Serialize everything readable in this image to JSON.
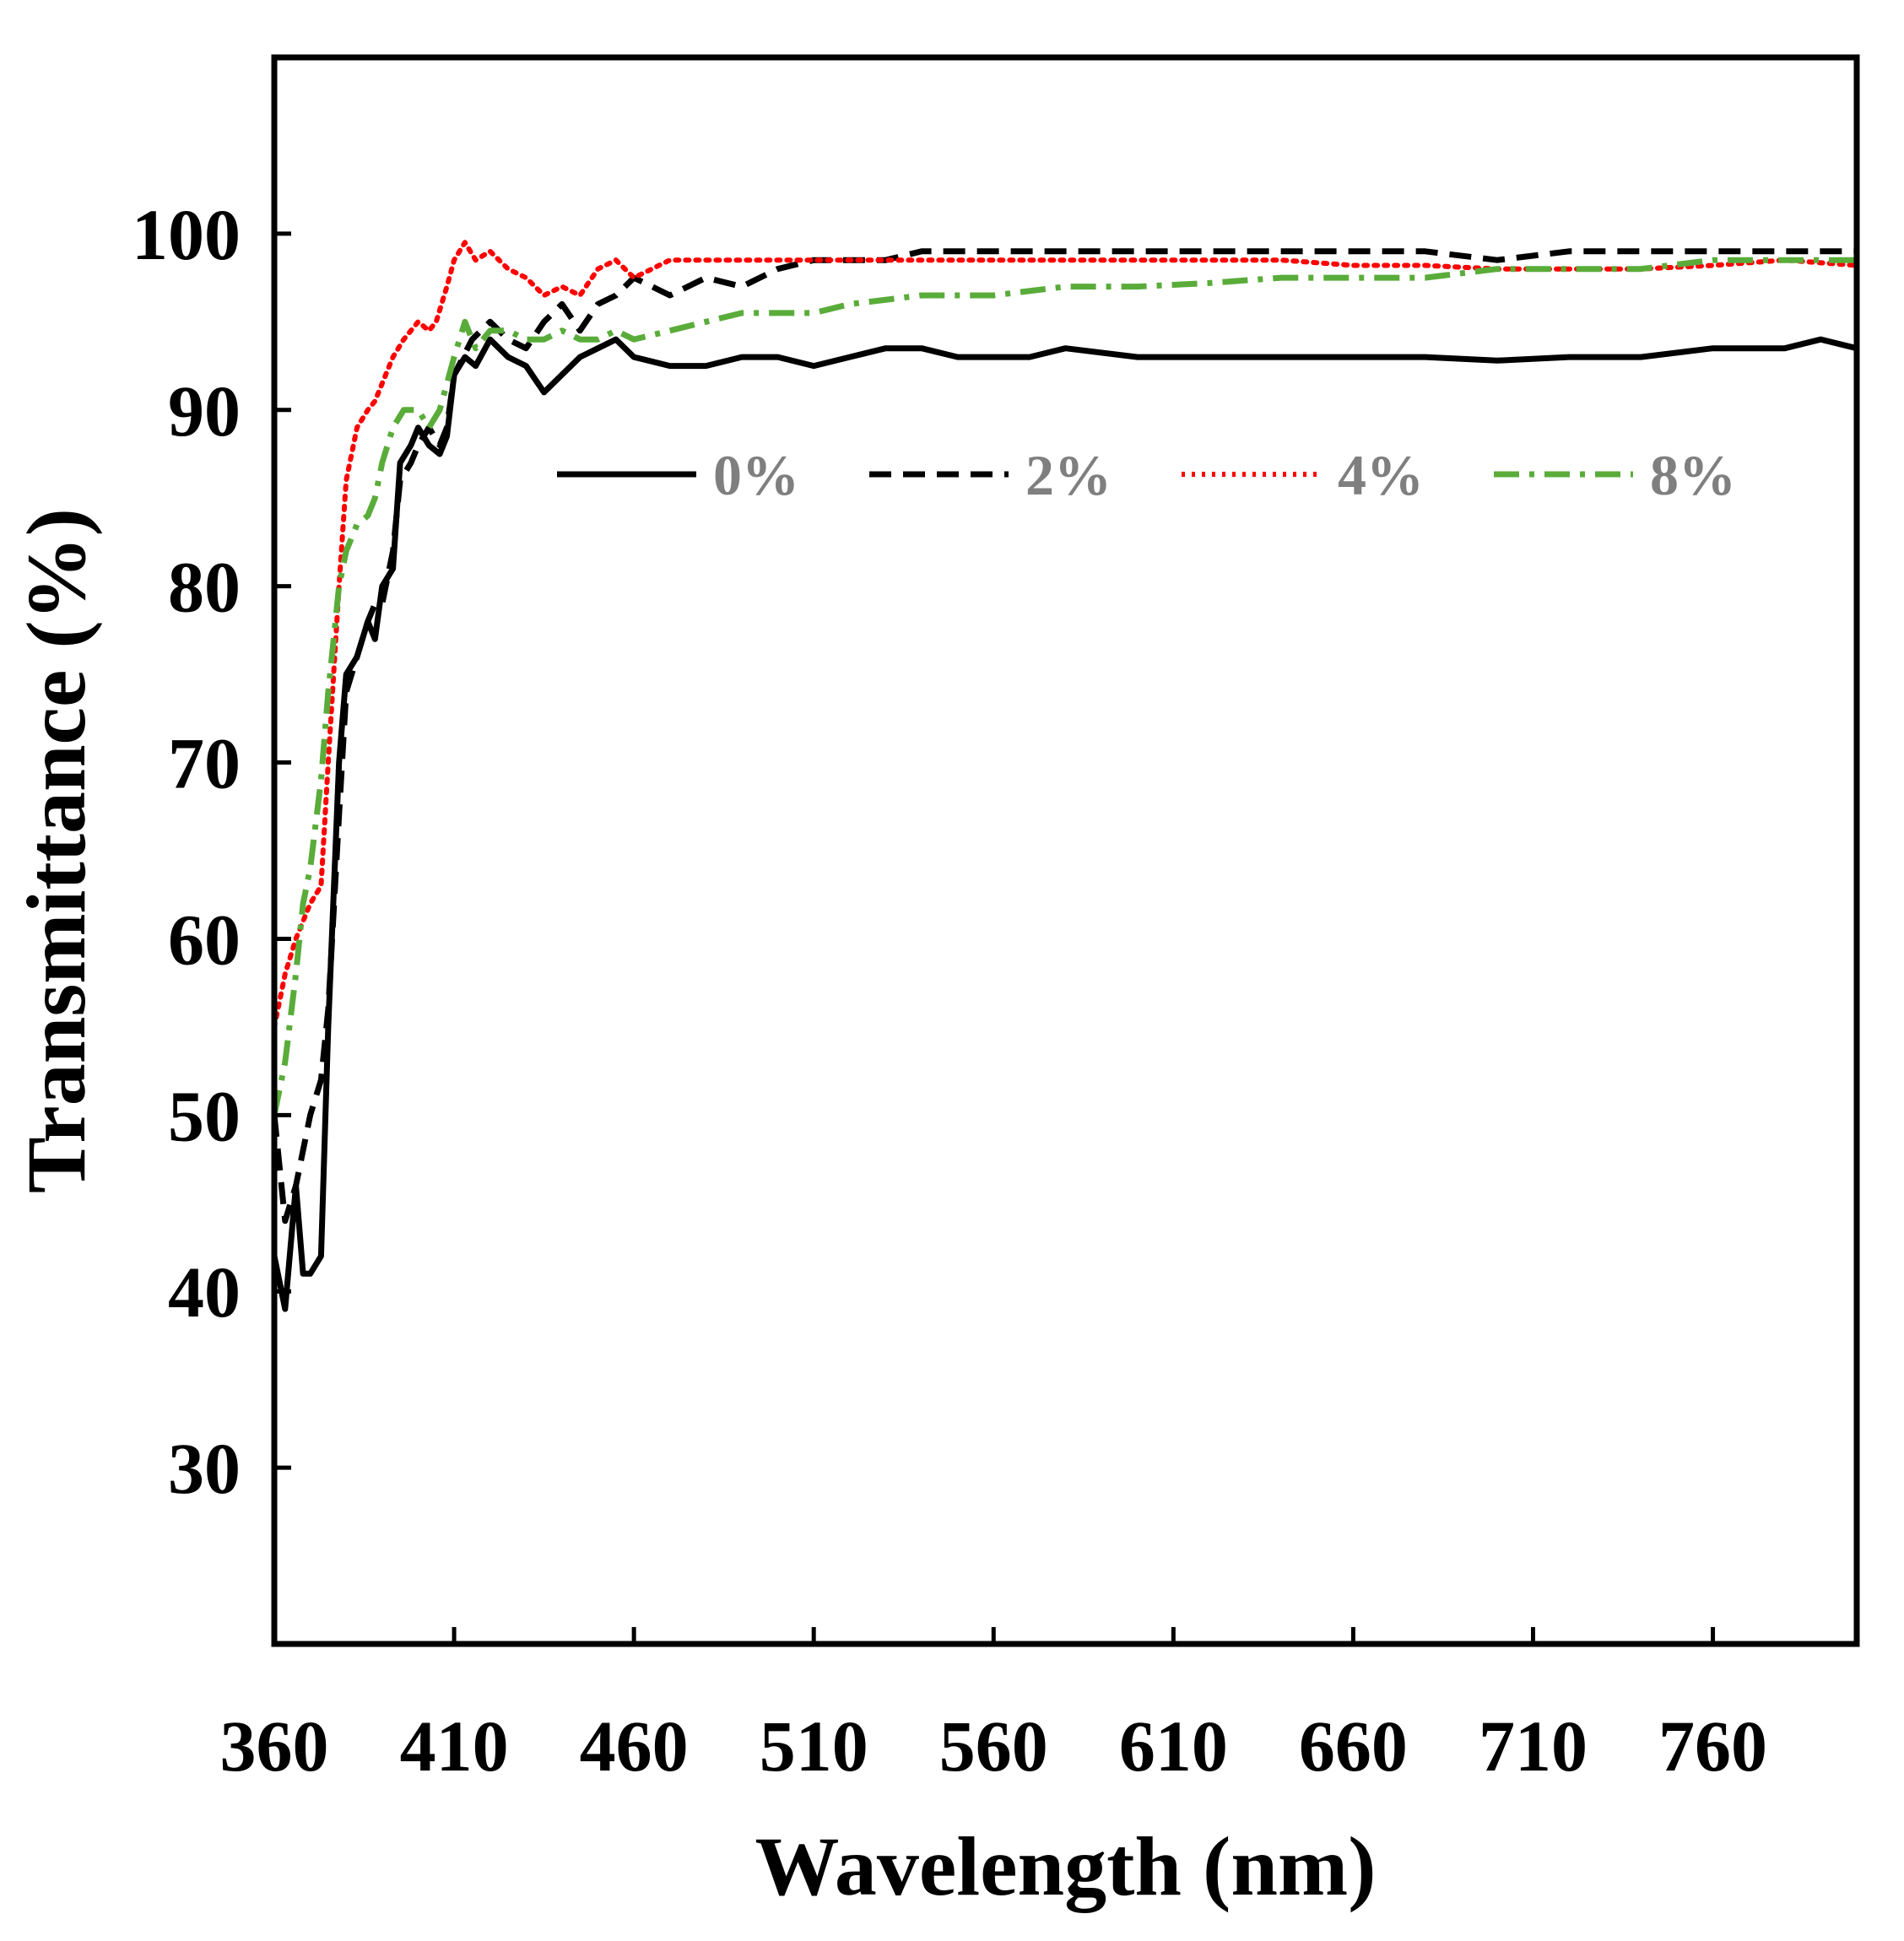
{
  "chart_data": {
    "type": "line",
    "title": "",
    "xlabel": "Wavelength (nm)",
    "ylabel": "Transmittance (%)",
    "xlim": [
      360,
      800
    ],
    "ylim": [
      20,
      110
    ],
    "xticks": [
      360,
      410,
      460,
      510,
      560,
      610,
      660,
      710,
      760
    ],
    "yticks": [
      30,
      40,
      50,
      60,
      70,
      80,
      90,
      100
    ],
    "grid": false,
    "legend_position": "upper-center",
    "series": [
      {
        "name": "0%",
        "color": "#000000",
        "dash": "solid",
        "x": [
          360,
          363,
          366,
          368,
          370,
          373,
          375,
          378,
          380,
          383,
          386,
          388,
          390,
          393,
          395,
          398,
          400,
          403,
          406,
          408,
          410,
          413,
          416,
          420,
          425,
          430,
          435,
          440,
          445,
          450,
          455,
          460,
          470,
          480,
          490,
          500,
          510,
          520,
          530,
          540,
          550,
          560,
          570,
          580,
          600,
          620,
          640,
          660,
          680,
          700,
          720,
          740,
          760,
          780,
          790,
          800
        ],
        "y": [
          42,
          39,
          46,
          41,
          41,
          42,
          55,
          70,
          75,
          76,
          78,
          77,
          80,
          81,
          87,
          88,
          89,
          88,
          87.5,
          88.5,
          92,
          93,
          92.5,
          94,
          93,
          92.5,
          91,
          92,
          93,
          93.5,
          94,
          93,
          92.5,
          92.5,
          93,
          93,
          92.5,
          93,
          93.5,
          93.5,
          93,
          93,
          93,
          93.5,
          93,
          93,
          93,
          93,
          93,
          92.8,
          93,
          93,
          93.5,
          93.5,
          94,
          93.5
        ]
      },
      {
        "name": "2%",
        "color": "#000000",
        "dash": "dashed",
        "x": [
          360,
          363,
          366,
          368,
          370,
          373,
          375,
          378,
          380,
          383,
          386,
          388,
          390,
          393,
          395,
          398,
          400,
          403,
          406,
          408,
          410,
          415,
          420,
          425,
          430,
          435,
          440,
          445,
          450,
          455,
          460,
          470,
          480,
          490,
          500,
          510,
          520,
          530,
          540,
          550,
          560,
          580,
          600,
          620,
          640,
          660,
          680,
          700,
          720,
          740,
          760,
          780,
          800
        ],
        "y": [
          50,
          44,
          46,
          48,
          50,
          52,
          56,
          67,
          74,
          76,
          78,
          79,
          79,
          82,
          86,
          87,
          88,
          89,
          88,
          89,
          92,
          94,
          95,
          94,
          93.5,
          95,
          96,
          94.5,
          96,
          96.5,
          97.5,
          96.5,
          97.5,
          97,
          98,
          98.5,
          98.5,
          98.5,
          99,
          99,
          99,
          99,
          99,
          99,
          99,
          99,
          99,
          98.5,
          99,
          99,
          99,
          99,
          99
        ]
      },
      {
        "name": "4%",
        "color": "#ff0000",
        "dash": "dotted",
        "x": [
          360,
          363,
          366,
          368,
          370,
          373,
          375,
          378,
          380,
          383,
          386,
          388,
          390,
          393,
          396,
          400,
          403,
          405,
          408,
          410,
          413,
          416,
          420,
          425,
          430,
          435,
          440,
          445,
          450,
          455,
          460,
          470,
          480,
          490,
          500,
          510,
          520,
          540,
          560,
          580,
          600,
          620,
          640,
          660,
          680,
          700,
          720,
          740,
          760,
          780,
          800
        ],
        "y": [
          55,
          58,
          60,
          61,
          62,
          63,
          70,
          80,
          86,
          89,
          90,
          90.5,
          91.5,
          93,
          94,
          95,
          94.5,
          95,
          97,
          98.5,
          99.5,
          98.5,
          99,
          98,
          97.5,
          96.5,
          97,
          96.5,
          98,
          98.5,
          97.5,
          98.5,
          98.5,
          98.5,
          98.5,
          98.5,
          98.5,
          98.5,
          98.5,
          98.5,
          98.5,
          98.5,
          98.5,
          98.2,
          98.2,
          98,
          98,
          98,
          98.2,
          98.5,
          98.2
        ]
      },
      {
        "name": "8%",
        "color": "#5aac3a",
        "dash": "dash-dot",
        "x": [
          360,
          363,
          366,
          368,
          370,
          373,
          375,
          378,
          380,
          383,
          386,
          388,
          390,
          393,
          396,
          400,
          403,
          406,
          410,
          413,
          416,
          420,
          425,
          430,
          435,
          440,
          445,
          450,
          455,
          460,
          470,
          480,
          490,
          500,
          510,
          520,
          540,
          560,
          580,
          600,
          620,
          640,
          660,
          680,
          700,
          720,
          740,
          760,
          780,
          800
        ],
        "y": [
          50,
          53,
          58,
          62,
          64,
          69,
          74,
          80,
          82,
          83.5,
          84,
          85,
          87,
          89,
          90,
          90,
          89,
          90,
          93,
          95,
          93.5,
          94.5,
          94.5,
          94,
          94,
          94.5,
          94,
          94,
          94.5,
          94,
          94.5,
          95,
          95.5,
          95.5,
          95.5,
          96,
          96.5,
          96.5,
          97,
          97,
          97.2,
          97.5,
          97.5,
          97.5,
          98,
          98,
          98,
          98.5,
          98.5,
          98.5
        ]
      }
    ]
  }
}
